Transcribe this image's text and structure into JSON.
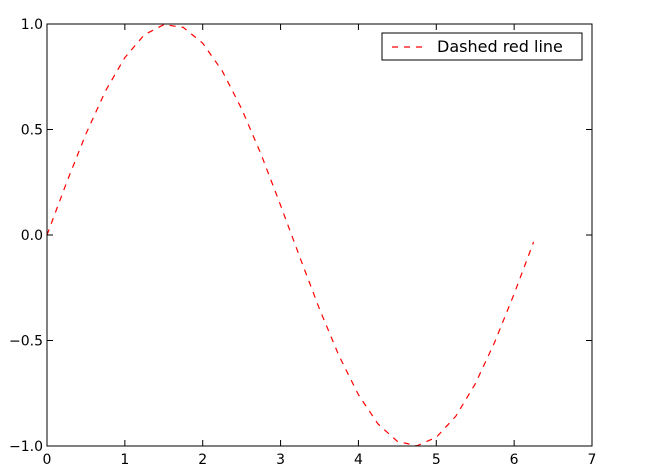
{
  "chart_data": {
    "type": "line",
    "title": "",
    "xlabel": "",
    "ylabel": "",
    "xlim": [
      0,
      7
    ],
    "ylim": [
      -1.0,
      1.0
    ],
    "x_ticks": [
      0,
      1,
      2,
      3,
      4,
      5,
      6,
      7
    ],
    "x_tick_labels": [
      "0",
      "1",
      "2",
      "3",
      "4",
      "5",
      "6",
      "7"
    ],
    "y_ticks": [
      1.0,
      0.5,
      0.0,
      -0.5,
      -1.0
    ],
    "y_tick_labels": [
      "1.0",
      "0.5",
      "0.0",
      "−0.5",
      "−1.0"
    ],
    "grid": false,
    "legend_position": "top-right",
    "series": [
      {
        "name": "Dashed red line",
        "color": "#ff0000",
        "line_style": "dashed",
        "x": [
          0.0,
          0.25,
          0.5,
          0.75,
          1.0,
          1.25,
          1.5,
          1.75,
          2.0,
          2.25,
          2.5,
          2.75,
          3.0,
          3.25,
          3.5,
          3.75,
          4.0,
          4.25,
          4.5,
          4.75,
          5.0,
          5.25,
          5.5,
          5.75,
          6.0,
          6.25
        ],
        "y": [
          0.0,
          0.247,
          0.479,
          0.682,
          0.841,
          0.949,
          0.997,
          0.984,
          0.909,
          0.778,
          0.598,
          0.382,
          0.141,
          -0.108,
          -0.351,
          -0.572,
          -0.757,
          -0.895,
          -0.978,
          -0.999,
          -0.959,
          -0.859,
          -0.706,
          -0.508,
          -0.279,
          -0.033
        ]
      }
    ]
  }
}
